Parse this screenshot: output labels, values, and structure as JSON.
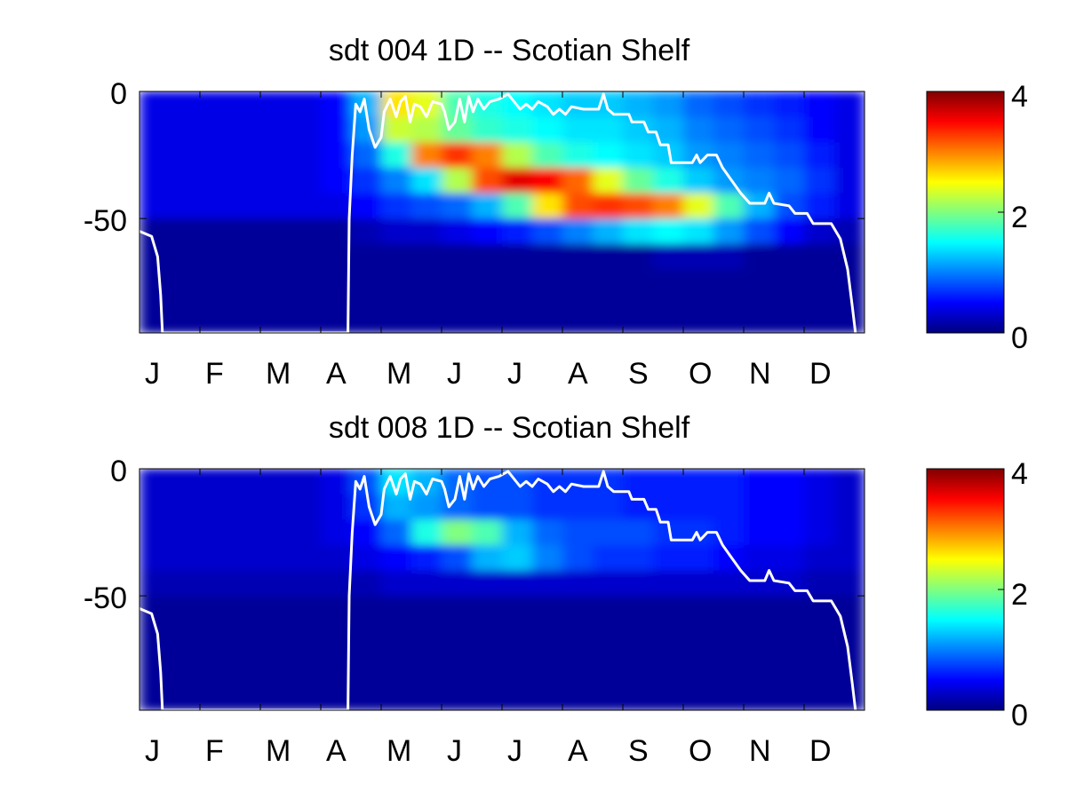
{
  "chart_data": [
    {
      "type": "heatmap",
      "title": "sdt  004 1D   -- Scotian Shelf",
      "colormap": "jet",
      "categories": [
        "J",
        "F",
        "M",
        "A",
        "M",
        "J",
        "J",
        "A",
        "S",
        "O",
        "N",
        "D"
      ],
      "xlim": [
        0,
        12
      ],
      "ylim": [
        -95,
        0
      ],
      "yticks": [
        0,
        -50
      ],
      "x_bins": [
        0,
        0.5,
        1,
        1.5,
        2,
        2.5,
        3,
        3.5,
        4,
        4.5,
        5,
        5.5,
        6,
        6.5,
        7,
        7.5,
        8,
        8.5,
        9,
        9.5,
        10,
        10.5,
        11,
        11.5,
        12
      ],
      "y_bins": [
        0,
        -10,
        -20,
        -30,
        -40,
        -50,
        -60,
        -70,
        -80,
        -90,
        -95
      ],
      "values": [
        [
          0.4,
          0.4,
          0.4,
          0.4,
          0.4,
          0.4,
          0.5,
          1.2,
          2.6,
          2.4,
          1.8,
          1.6,
          1.5,
          1.4,
          1.3,
          1.3,
          1.2,
          1.1,
          0.9,
          0.8,
          0.7,
          0.6,
          0.5,
          0.4
        ],
        [
          0.4,
          0.4,
          0.4,
          0.4,
          0.4,
          0.4,
          0.5,
          1.1,
          2.3,
          2.2,
          1.9,
          1.7,
          1.6,
          1.5,
          1.4,
          1.4,
          1.3,
          1.2,
          1.0,
          0.9,
          0.8,
          0.7,
          0.5,
          0.4
        ],
        [
          0.4,
          0.4,
          0.4,
          0.4,
          0.4,
          0.4,
          0.5,
          0.9,
          1.6,
          3.0,
          3.3,
          3.0,
          2.2,
          1.8,
          1.6,
          1.5,
          1.4,
          1.3,
          1.1,
          1.0,
          0.9,
          0.8,
          0.6,
          0.4
        ],
        [
          0.4,
          0.4,
          0.4,
          0.4,
          0.4,
          0.4,
          0.5,
          0.7,
          1.0,
          1.4,
          2.2,
          3.2,
          3.6,
          3.5,
          3.1,
          2.4,
          1.9,
          1.6,
          1.3,
          1.1,
          1.0,
          0.9,
          0.7,
          0.4
        ],
        [
          0.4,
          0.4,
          0.4,
          0.4,
          0.4,
          0.4,
          0.4,
          0.5,
          0.7,
          0.8,
          0.9,
          1.2,
          1.8,
          2.6,
          3.2,
          3.3,
          3.2,
          3.0,
          2.4,
          1.8,
          1.2,
          0.8,
          0.6,
          0.4
        ],
        [
          0.1,
          0.1,
          0.1,
          0.1,
          0.1,
          0.1,
          0.1,
          0.2,
          0.3,
          0.3,
          0.4,
          0.5,
          0.6,
          0.8,
          1.0,
          1.2,
          1.4,
          1.5,
          1.4,
          1.1,
          0.8,
          0.5,
          0.3,
          0.2
        ],
        [
          0.1,
          0.1,
          0.1,
          0.1,
          0.1,
          0.1,
          0.1,
          0.1,
          0.1,
          0.1,
          0.1,
          0.1,
          0.1,
          0.1,
          0.1,
          0.1,
          0.1,
          0.2,
          0.2,
          0.2,
          0.1,
          0.1,
          0.1,
          0.1
        ],
        [
          0.1,
          0.1,
          0.1,
          0.1,
          0.1,
          0.1,
          0.1,
          0.1,
          0.1,
          0.1,
          0.1,
          0.1,
          0.1,
          0.1,
          0.1,
          0.1,
          0.1,
          0.1,
          0.1,
          0.1,
          0.1,
          0.1,
          0.1,
          0.1
        ],
        [
          0.1,
          0.1,
          0.1,
          0.1,
          0.1,
          0.1,
          0.1,
          0.1,
          0.1,
          0.1,
          0.1,
          0.1,
          0.1,
          0.1,
          0.1,
          0.1,
          0.1,
          0.1,
          0.1,
          0.1,
          0.1,
          0.1,
          0.1,
          0.1
        ],
        [
          0.1,
          0.1,
          0.1,
          0.1,
          0.1,
          0.1,
          0.1,
          0.1,
          0.1,
          0.1,
          0.1,
          0.1,
          0.1,
          0.1,
          0.1,
          0.1,
          0.1,
          0.1,
          0.1,
          0.1,
          0.1,
          0.1,
          0.1,
          0.1
        ]
      ],
      "colorbar": {
        "clim": [
          0,
          4
        ],
        "ticks": [
          0,
          2,
          4
        ]
      },
      "line": {
        "color": "#ffffff",
        "x": [
          0,
          0.2,
          0.3,
          0.35,
          0.38,
          3.45,
          3.47,
          3.52,
          3.58,
          3.65,
          3.72,
          3.8,
          3.9,
          4.0,
          4.05,
          4.15,
          4.25,
          4.32,
          4.4,
          4.48,
          4.55,
          4.65,
          4.75,
          4.85,
          5.0,
          5.05,
          5.12,
          5.22,
          5.3,
          5.38,
          5.45,
          5.52,
          5.6,
          5.7,
          5.8,
          5.95,
          6.1,
          6.2,
          6.3,
          6.4,
          6.5,
          6.6,
          6.75,
          6.85,
          6.95,
          7.05,
          7.15,
          7.35,
          7.6,
          7.68,
          7.75,
          7.85,
          8.1,
          8.15,
          8.35,
          8.42,
          8.55,
          8.62,
          8.75,
          8.8,
          9.15,
          9.22,
          9.28,
          9.4,
          9.55,
          9.65,
          9.8,
          9.95,
          10.1,
          10.35,
          10.42,
          10.5,
          10.75,
          10.85,
          11.05,
          11.15,
          11.45,
          11.6,
          11.72,
          11.8,
          11.85
        ],
        "y": [
          -55,
          -57,
          -65,
          -80,
          -95,
          -95,
          -50,
          -25,
          -5,
          -8,
          -3,
          -15,
          -22,
          -18,
          -8,
          -3,
          -10,
          -4,
          -2,
          -12,
          -5,
          -6,
          -10,
          -4,
          -5,
          -8,
          -15,
          -12,
          -3,
          -12,
          -2,
          -8,
          -3,
          -7,
          -4,
          -3,
          -1,
          -4,
          -7,
          -5,
          -7,
          -4,
          -6,
          -9,
          -7,
          -9,
          -6,
          -7,
          -7,
          -1,
          -7,
          -9,
          -9,
          -12,
          -12,
          -16,
          -16,
          -21,
          -21,
          -28,
          -28,
          -25,
          -28,
          -25,
          -25,
          -30,
          -35,
          -40,
          -44,
          -44,
          -40,
          -44,
          -45,
          -48,
          -48,
          -52,
          -52,
          -58,
          -70,
          -85,
          -95
        ]
      }
    },
    {
      "type": "heatmap",
      "title": "sdt  008 1D   -- Scotian Shelf",
      "colormap": "jet",
      "categories": [
        "J",
        "F",
        "M",
        "A",
        "M",
        "J",
        "J",
        "A",
        "S",
        "O",
        "N",
        "D"
      ],
      "xlim": [
        0,
        12
      ],
      "ylim": [
        -95,
        0
      ],
      "yticks": [
        0,
        -50
      ],
      "x_bins": [
        0,
        0.5,
        1,
        1.5,
        2,
        2.5,
        3,
        3.5,
        4,
        4.5,
        5,
        5.5,
        6,
        6.5,
        7,
        7.5,
        8,
        8.5,
        9,
        9.5,
        10,
        10.5,
        11,
        11.5,
        12
      ],
      "y_bins": [
        0,
        -10,
        -20,
        -30,
        -40,
        -50,
        -60,
        -70,
        -80,
        -90,
        -95
      ],
      "values": [
        [
          0.3,
          0.3,
          0.3,
          0.3,
          0.3,
          0.3,
          0.4,
          0.8,
          1.4,
          1.2,
          0.9,
          0.8,
          0.8,
          0.7,
          0.7,
          0.7,
          0.6,
          0.6,
          0.6,
          0.6,
          0.5,
          0.5,
          0.4,
          0.3
        ],
        [
          0.3,
          0.3,
          0.3,
          0.3,
          0.3,
          0.3,
          0.4,
          0.7,
          1.2,
          1.1,
          0.9,
          0.8,
          0.8,
          0.7,
          0.7,
          0.7,
          0.6,
          0.6,
          0.6,
          0.6,
          0.5,
          0.5,
          0.4,
          0.3
        ],
        [
          0.3,
          0.3,
          0.3,
          0.3,
          0.3,
          0.3,
          0.4,
          0.5,
          0.9,
          1.6,
          2.0,
          1.8,
          1.2,
          0.9,
          0.8,
          0.8,
          0.8,
          0.7,
          0.7,
          0.6,
          0.5,
          0.5,
          0.4,
          0.3
        ],
        [
          0.3,
          0.3,
          0.3,
          0.3,
          0.3,
          0.3,
          0.3,
          0.4,
          0.5,
          0.6,
          0.8,
          1.2,
          1.3,
          1.0,
          0.8,
          0.7,
          0.7,
          0.6,
          0.6,
          0.5,
          0.4,
          0.4,
          0.3,
          0.3
        ],
        [
          0.2,
          0.2,
          0.2,
          0.2,
          0.2,
          0.2,
          0.2,
          0.2,
          0.3,
          0.3,
          0.3,
          0.3,
          0.3,
          0.3,
          0.3,
          0.3,
          0.3,
          0.3,
          0.3,
          0.3,
          0.3,
          0.3,
          0.2,
          0.2
        ],
        [
          0.1,
          0.1,
          0.1,
          0.1,
          0.1,
          0.1,
          0.1,
          0.1,
          0.1,
          0.1,
          0.1,
          0.1,
          0.1,
          0.1,
          0.1,
          0.1,
          0.1,
          0.1,
          0.1,
          0.1,
          0.1,
          0.1,
          0.1,
          0.1
        ],
        [
          0.1,
          0.1,
          0.1,
          0.1,
          0.1,
          0.1,
          0.1,
          0.1,
          0.1,
          0.1,
          0.1,
          0.1,
          0.1,
          0.1,
          0.1,
          0.1,
          0.1,
          0.1,
          0.1,
          0.1,
          0.1,
          0.1,
          0.1,
          0.1
        ],
        [
          0.1,
          0.1,
          0.1,
          0.1,
          0.1,
          0.1,
          0.1,
          0.1,
          0.1,
          0.1,
          0.1,
          0.1,
          0.1,
          0.1,
          0.1,
          0.1,
          0.1,
          0.1,
          0.1,
          0.1,
          0.1,
          0.1,
          0.1,
          0.1
        ],
        [
          0.1,
          0.1,
          0.1,
          0.1,
          0.1,
          0.1,
          0.1,
          0.1,
          0.1,
          0.1,
          0.1,
          0.1,
          0.1,
          0.1,
          0.1,
          0.1,
          0.1,
          0.1,
          0.1,
          0.1,
          0.1,
          0.1,
          0.1,
          0.1
        ],
        [
          0.1,
          0.1,
          0.1,
          0.1,
          0.1,
          0.1,
          0.1,
          0.1,
          0.1,
          0.1,
          0.1,
          0.1,
          0.1,
          0.1,
          0.1,
          0.1,
          0.1,
          0.1,
          0.1,
          0.1,
          0.1,
          0.1,
          0.1,
          0.1
        ]
      ],
      "colorbar": {
        "clim": [
          0,
          4
        ],
        "ticks": [
          0,
          2,
          4
        ]
      },
      "line": {
        "color": "#ffffff",
        "x": [
          0,
          0.2,
          0.3,
          0.35,
          0.38,
          3.45,
          3.47,
          3.52,
          3.58,
          3.65,
          3.72,
          3.8,
          3.9,
          4.0,
          4.05,
          4.15,
          4.25,
          4.32,
          4.4,
          4.48,
          4.55,
          4.65,
          4.75,
          4.85,
          5.0,
          5.05,
          5.12,
          5.22,
          5.3,
          5.38,
          5.45,
          5.52,
          5.6,
          5.7,
          5.8,
          5.95,
          6.1,
          6.2,
          6.3,
          6.4,
          6.5,
          6.6,
          6.75,
          6.85,
          6.95,
          7.05,
          7.15,
          7.35,
          7.6,
          7.68,
          7.75,
          7.85,
          8.1,
          8.15,
          8.35,
          8.42,
          8.55,
          8.62,
          8.75,
          8.8,
          9.15,
          9.22,
          9.28,
          9.4,
          9.55,
          9.65,
          9.8,
          9.95,
          10.1,
          10.35,
          10.42,
          10.5,
          10.75,
          10.85,
          11.05,
          11.15,
          11.45,
          11.6,
          11.72,
          11.8,
          11.85
        ],
        "y": [
          -55,
          -57,
          -65,
          -80,
          -95,
          -95,
          -50,
          -25,
          -5,
          -8,
          -3,
          -15,
          -22,
          -18,
          -8,
          -3,
          -10,
          -4,
          -2,
          -12,
          -5,
          -6,
          -10,
          -4,
          -5,
          -8,
          -15,
          -12,
          -3,
          -12,
          -2,
          -8,
          -3,
          -7,
          -4,
          -3,
          -1,
          -4,
          -7,
          -5,
          -7,
          -4,
          -6,
          -9,
          -7,
          -9,
          -6,
          -7,
          -7,
          -1,
          -7,
          -9,
          -9,
          -12,
          -12,
          -16,
          -16,
          -21,
          -21,
          -28,
          -28,
          -25,
          -28,
          -25,
          -25,
          -30,
          -35,
          -40,
          -44,
          -44,
          -40,
          -44,
          -45,
          -48,
          -48,
          -52,
          -52,
          -58,
          -70,
          -85,
          -95
        ]
      }
    }
  ]
}
